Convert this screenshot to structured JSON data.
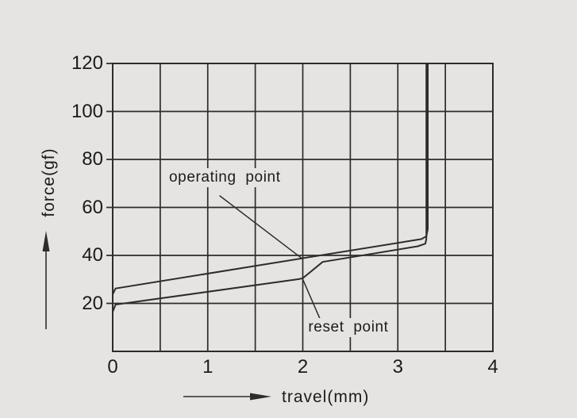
{
  "colors": {
    "background": "#e6e4e3",
    "line": "#2e2c2b",
    "text": "#1b1b1b"
  },
  "chart_data": {
    "type": "line",
    "title": "",
    "xlabel": "travel(mm)",
    "ylabel": "force(gf)",
    "xlim": [
      0,
      4
    ],
    "ylim": [
      0,
      120
    ],
    "xticks": [
      0,
      1,
      2,
      3,
      4
    ],
    "yticks": [
      120,
      100,
      80,
      60,
      40,
      20
    ],
    "x_grid_step": 0.5,
    "grid": true,
    "series": [
      {
        "id": "press-downstroke",
        "points": [
          [
            0,
            23.8
          ],
          [
            0.03,
            26.2
          ],
          [
            3.25,
            46.8
          ],
          [
            3.3,
            48.0
          ],
          [
            3.315,
            51.0
          ],
          [
            3.315,
            120
          ]
        ]
      },
      {
        "id": "release-upstroke",
        "points": [
          [
            0,
            16.5
          ],
          [
            0.03,
            19.5
          ],
          [
            1.96,
            30.1
          ],
          [
            2.0,
            30.5
          ],
          [
            2.21,
            37.3
          ],
          [
            3.21,
            43.8
          ],
          [
            3.29,
            44.9
          ],
          [
            3.3,
            47.0
          ],
          [
            3.3,
            120
          ]
        ]
      }
    ],
    "annotations": [
      {
        "id": "operating-point",
        "text": "operating  point",
        "point": [
          2.0,
          38.9
        ],
        "label_pos": [
          1.18,
          72.4
        ],
        "leader": [
          [
            1.128,
            64.8
          ],
          [
            1.985,
            38.9
          ]
        ]
      },
      {
        "id": "reset-point",
        "text": "reset  point",
        "point": [
          2.0,
          30.5
        ],
        "label_pos": [
          2.48,
          9.8
        ],
        "leader": [
          [
            2.18,
            13.6
          ],
          [
            1.996,
            30.4
          ]
        ]
      }
    ]
  }
}
